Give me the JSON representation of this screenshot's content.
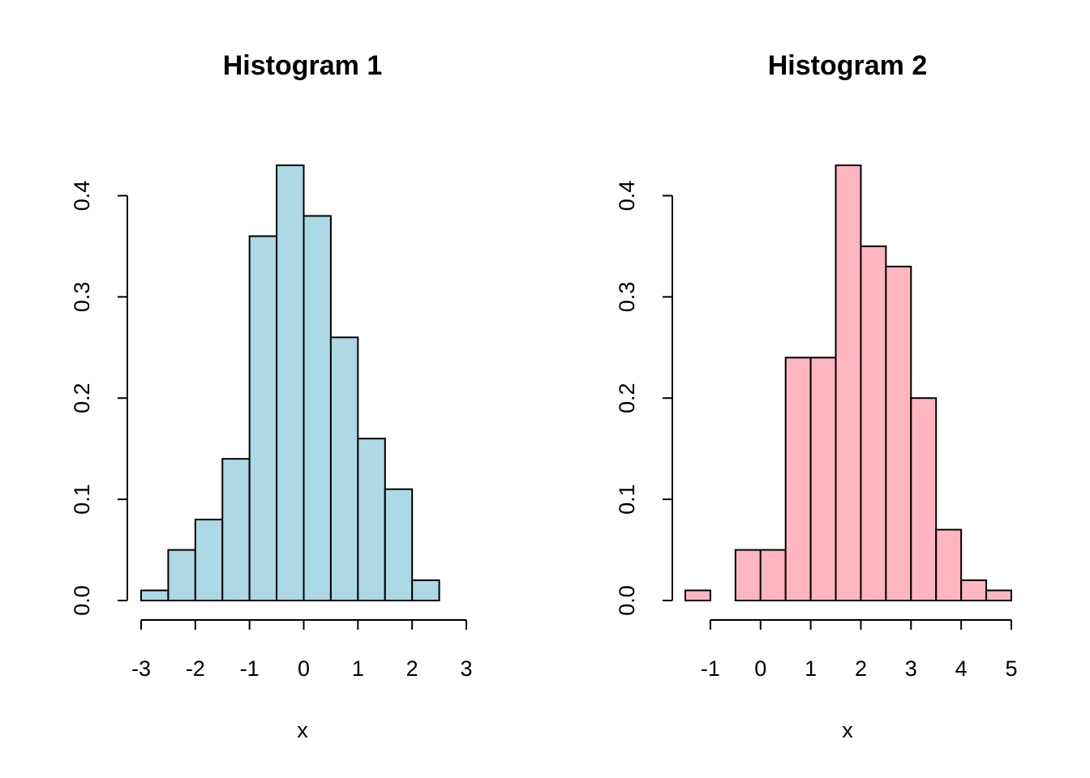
{
  "chart_data": [
    {
      "type": "bar",
      "title": "Histogram 1",
      "xlabel": "x",
      "ylabel": "",
      "fill_color": "#ADD8E6",
      "bin_edges": [
        -3,
        -2.5,
        -2,
        -1.5,
        -1,
        -0.5,
        0,
        0.5,
        1,
        1.5,
        2,
        2.5
      ],
      "values": [
        0.01,
        0.05,
        0.08,
        0.14,
        0.36,
        0.43,
        0.38,
        0.26,
        0.16,
        0.11,
        0.02
      ],
      "xlim": [
        -3,
        3
      ],
      "ylim": [
        0,
        0.43
      ],
      "x_ticks": [
        -3,
        -2,
        -1,
        0,
        1,
        2,
        3
      ],
      "x_tick_labels": [
        "-3",
        "-2",
        "-1",
        "0",
        "1",
        "2",
        "3"
      ],
      "y_ticks": [
        0,
        0.1,
        0.2,
        0.3,
        0.4
      ],
      "y_tick_labels": [
        "0.0",
        "0.1",
        "0.2",
        "0.3",
        "0.4"
      ],
      "grid": false
    },
    {
      "type": "bar",
      "title": "Histogram 2",
      "xlabel": "x",
      "ylabel": "",
      "fill_color": "#FFB6C1",
      "bin_edges": [
        -1.5,
        -1,
        -0.5,
        0,
        0.5,
        1,
        1.5,
        2,
        2.5,
        3,
        3.5,
        4,
        4.5,
        5
      ],
      "values": [
        0.01,
        0,
        0.05,
        0.05,
        0.24,
        0.24,
        0.43,
        0.35,
        0.33,
        0.2,
        0.07,
        0.02,
        0.01
      ],
      "xlim": [
        -1.5,
        5
      ],
      "ylim": [
        0,
        0.43
      ],
      "x_ticks": [
        -1,
        0,
        1,
        2,
        3,
        4,
        5
      ],
      "x_tick_labels": [
        "-1",
        "0",
        "1",
        "2",
        "3",
        "4",
        "5"
      ],
      "y_ticks": [
        0,
        0.1,
        0.2,
        0.3,
        0.4
      ],
      "y_tick_labels": [
        "0.0",
        "0.1",
        "0.2",
        "0.3",
        "0.4"
      ],
      "grid": false
    }
  ]
}
